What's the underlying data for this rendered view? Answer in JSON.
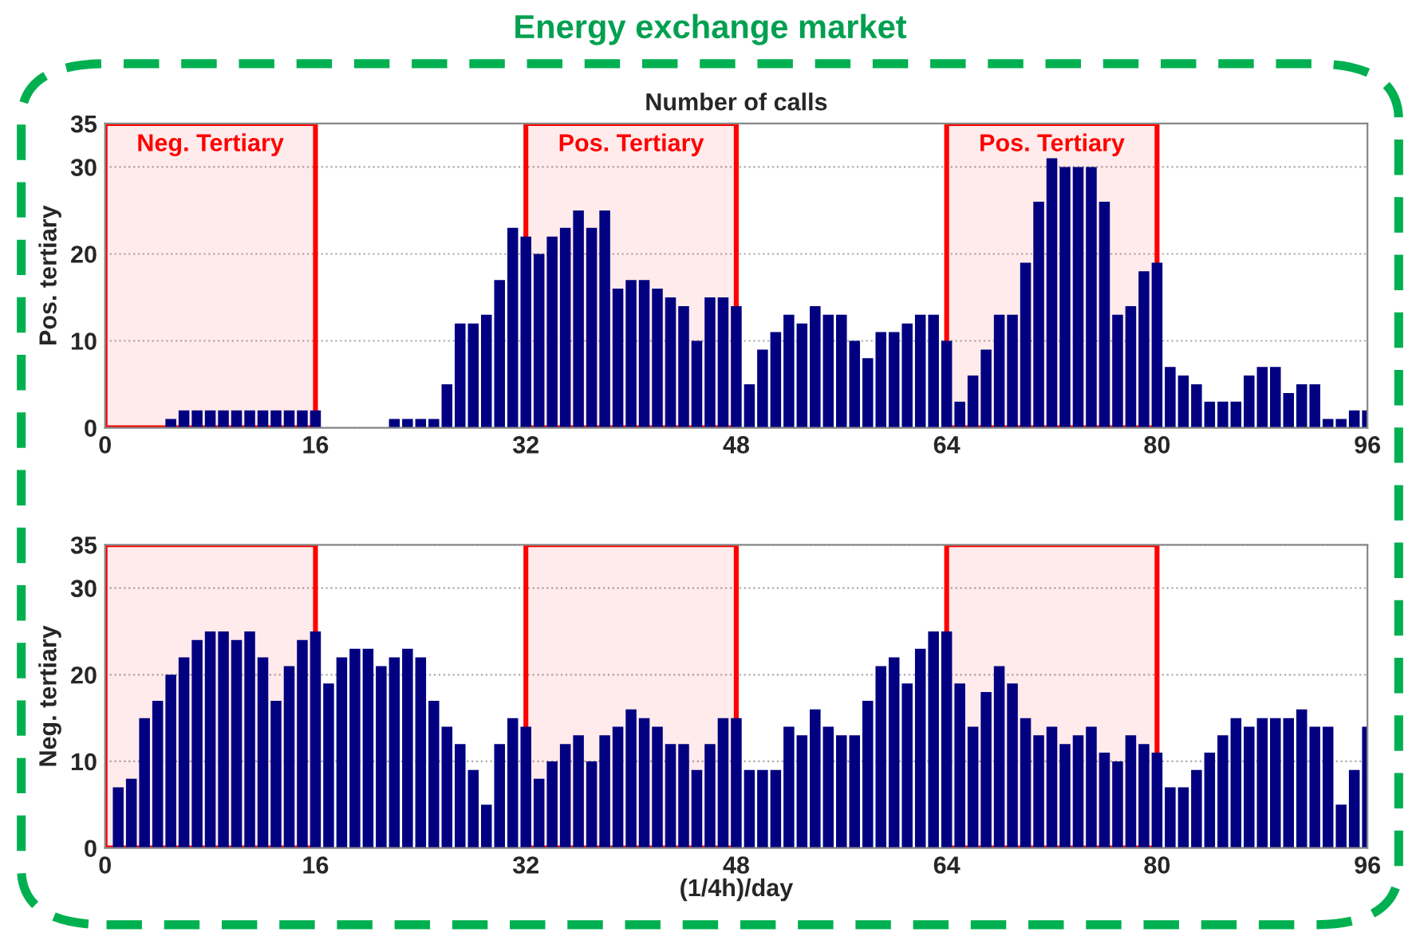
{
  "chart_data": [
    {
      "type": "bar",
      "title": "Energy exchange market",
      "subtitle": "Number of calls",
      "ylabel": "Pos. tertiary",
      "x": [
        1,
        2,
        3,
        4,
        5,
        6,
        7,
        8,
        9,
        10,
        11,
        12,
        13,
        14,
        15,
        16,
        17,
        18,
        19,
        20,
        21,
        22,
        23,
        24,
        25,
        26,
        27,
        28,
        29,
        30,
        31,
        32,
        33,
        34,
        35,
        36,
        37,
        38,
        39,
        40,
        41,
        42,
        43,
        44,
        45,
        46,
        47,
        48,
        49,
        50,
        51,
        52,
        53,
        54,
        55,
        56,
        57,
        58,
        59,
        60,
        61,
        62,
        63,
        64,
        65,
        66,
        67,
        68,
        69,
        70,
        71,
        72,
        73,
        74,
        75,
        76,
        77,
        78,
        79,
        80,
        81,
        82,
        83,
        84,
        85,
        86,
        87,
        88,
        89,
        90,
        91,
        92,
        93,
        94,
        95,
        96
      ],
      "values": [
        0,
        0,
        0,
        0,
        1,
        2,
        2,
        2,
        2,
        2,
        2,
        2,
        2,
        2,
        2,
        2,
        0,
        0,
        0,
        0,
        0,
        1,
        1,
        1,
        1,
        5,
        12,
        12,
        13,
        17,
        23,
        22,
        20,
        22,
        23,
        25,
        23,
        25,
        16,
        17,
        17,
        16,
        15,
        14,
        10,
        15,
        15,
        14,
        5,
        9,
        11,
        13,
        12,
        14,
        13,
        13,
        10,
        8,
        11,
        11,
        12,
        13,
        13,
        10,
        3,
        6,
        9,
        13,
        13,
        19,
        26,
        31,
        30,
        30,
        30,
        26,
        13,
        14,
        18,
        19,
        7,
        6,
        5,
        3,
        3,
        3,
        6,
        7,
        7,
        4,
        5,
        5,
        1,
        1,
        2,
        2
      ],
      "color": "#000080",
      "xlim": [
        0,
        96
      ],
      "xticks": [
        0,
        16,
        32,
        48,
        64,
        80,
        96
      ],
      "ylim": [
        0,
        35
      ],
      "yticks": [
        0,
        10,
        20,
        30,
        35
      ],
      "grid": true,
      "bands": [
        {
          "axis": "x",
          "from": 0,
          "to": 16,
          "label": "Neg. Tertiary",
          "color": "#ff0000"
        },
        {
          "axis": "x",
          "from": 32,
          "to": 48,
          "label": "Pos. Tertiary",
          "color": "#ff0000"
        },
        {
          "axis": "x",
          "from": 64,
          "to": 80,
          "label": "Pos. Tertiary",
          "color": "#ff0000"
        }
      ]
    },
    {
      "type": "bar",
      "ylabel": "Neg. tertiary",
      "xlabel": "(1/4h)/day",
      "x": [
        1,
        2,
        3,
        4,
        5,
        6,
        7,
        8,
        9,
        10,
        11,
        12,
        13,
        14,
        15,
        16,
        17,
        18,
        19,
        20,
        21,
        22,
        23,
        24,
        25,
        26,
        27,
        28,
        29,
        30,
        31,
        32,
        33,
        34,
        35,
        36,
        37,
        38,
        39,
        40,
        41,
        42,
        43,
        44,
        45,
        46,
        47,
        48,
        49,
        50,
        51,
        52,
        53,
        54,
        55,
        56,
        57,
        58,
        59,
        60,
        61,
        62,
        63,
        64,
        65,
        66,
        67,
        68,
        69,
        70,
        71,
        72,
        73,
        74,
        75,
        76,
        77,
        78,
        79,
        80,
        81,
        82,
        83,
        84,
        85,
        86,
        87,
        88,
        89,
        90,
        91,
        92,
        93,
        94,
        95,
        96
      ],
      "values": [
        7,
        8,
        15,
        17,
        20,
        22,
        24,
        25,
        25,
        24,
        25,
        22,
        17,
        21,
        24,
        25,
        19,
        22,
        23,
        23,
        21,
        22,
        23,
        22,
        17,
        14,
        12,
        9,
        5,
        12,
        15,
        14,
        8,
        10,
        12,
        13,
        10,
        13,
        14,
        16,
        15,
        14,
        12,
        12,
        9,
        12,
        15,
        15,
        9,
        9,
        9,
        14,
        13,
        16,
        14,
        13,
        13,
        17,
        21,
        22,
        19,
        23,
        25,
        25,
        19,
        14,
        18,
        21,
        19,
        15,
        13,
        14,
        12,
        13,
        14,
        11,
        10,
        13,
        12,
        11,
        7,
        7,
        9,
        11,
        13,
        15,
        14,
        15,
        15,
        15,
        16,
        14,
        14,
        5,
        9,
        14
      ],
      "color": "#000080",
      "xlim": [
        0,
        96
      ],
      "xticks": [
        0,
        16,
        32,
        48,
        64,
        80,
        96
      ],
      "ylim": [
        0,
        35
      ],
      "yticks": [
        0,
        10,
        20,
        30,
        35
      ],
      "grid": true,
      "bands": [
        {
          "axis": "x",
          "from": 0,
          "to": 16,
          "color": "#ff0000"
        },
        {
          "axis": "x",
          "from": 32,
          "to": 48,
          "color": "#ff0000"
        },
        {
          "axis": "x",
          "from": 64,
          "to": 80,
          "color": "#ff0000"
        }
      ]
    }
  ]
}
